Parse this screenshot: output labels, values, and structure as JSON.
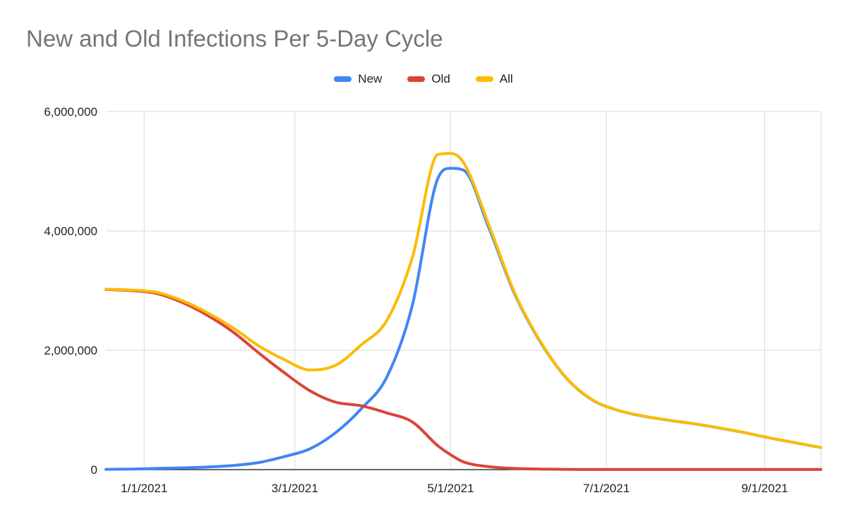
{
  "title": "New and Old Infections Per 5-Day Cycle",
  "colors": {
    "background": "#ffffff",
    "title": "#757575",
    "grid": "#d9d9d9",
    "axis": "#333333",
    "tick_label": "#222222",
    "legend_label": "#212121"
  },
  "chart_data": {
    "type": "line",
    "title": "New and Old Infections Per 5-Day Cycle",
    "xlabel": "",
    "ylabel": "",
    "legend_position": "top-center",
    "grid": true,
    "x_unit": "days since 1/1/2021 (one point per 5-day cycle, values estimated from plot)",
    "xlim": [
      -15,
      265
    ],
    "ylim": [
      0,
      6000000
    ],
    "x_ticks": [
      {
        "day": 0,
        "label": "1/1/2021"
      },
      {
        "day": 59,
        "label": "3/1/2021"
      },
      {
        "day": 120,
        "label": "5/1/2021"
      },
      {
        "day": 181,
        "label": "7/1/2021"
      },
      {
        "day": 243,
        "label": "9/1/2021"
      }
    ],
    "y_ticks": [
      {
        "value": 0,
        "label": "0"
      },
      {
        "value": 2000000,
        "label": "2,000,000"
      },
      {
        "value": 4000000,
        "label": "4,000,000"
      },
      {
        "value": 6000000,
        "label": "6,000,000"
      }
    ],
    "x": [
      -15,
      -5,
      5,
      15,
      25,
      35,
      45,
      55,
      65,
      75,
      85,
      95,
      105,
      115,
      120,
      125,
      135,
      145,
      155,
      165,
      175,
      185,
      195,
      205,
      215,
      225,
      235,
      245,
      255,
      265
    ],
    "series": [
      {
        "name": "New",
        "color": "#4285f4",
        "values": [
          5000,
          10000,
          20000,
          30000,
          45000,
          70000,
          120000,
          220000,
          350000,
          620000,
          1020000,
          1550000,
          2750000,
          4880000,
          5050000,
          5020000,
          4050000,
          2950000,
          2150000,
          1550000,
          1180000,
          1000000,
          900000,
          830000,
          770000,
          700000,
          620000,
          530000,
          450000,
          370000
        ]
      },
      {
        "name": "Old",
        "color": "#db4437",
        "values": [
          3020000,
          3000000,
          2950000,
          2800000,
          2580000,
          2300000,
          1950000,
          1620000,
          1320000,
          1130000,
          1070000,
          950000,
          800000,
          400000,
          250000,
          130000,
          50000,
          20000,
          10000,
          5000,
          3000,
          2000,
          2000,
          2000,
          2000,
          2000,
          2000,
          2000,
          2000,
          2000
        ]
      },
      {
        "name": "All",
        "color": "#fbbc04",
        "values": [
          3025000,
          3010000,
          2970000,
          2830000,
          2625000,
          2370000,
          2070000,
          1840000,
          1670000,
          1750000,
          2090000,
          2500000,
          3550000,
          5280000,
          5300000,
          5150000,
          4100000,
          2970000,
          2160000,
          1555000,
          1183000,
          1002000,
          902000,
          832000,
          772000,
          702000,
          622000,
          532000,
          452000,
          372000
        ]
      }
    ]
  }
}
